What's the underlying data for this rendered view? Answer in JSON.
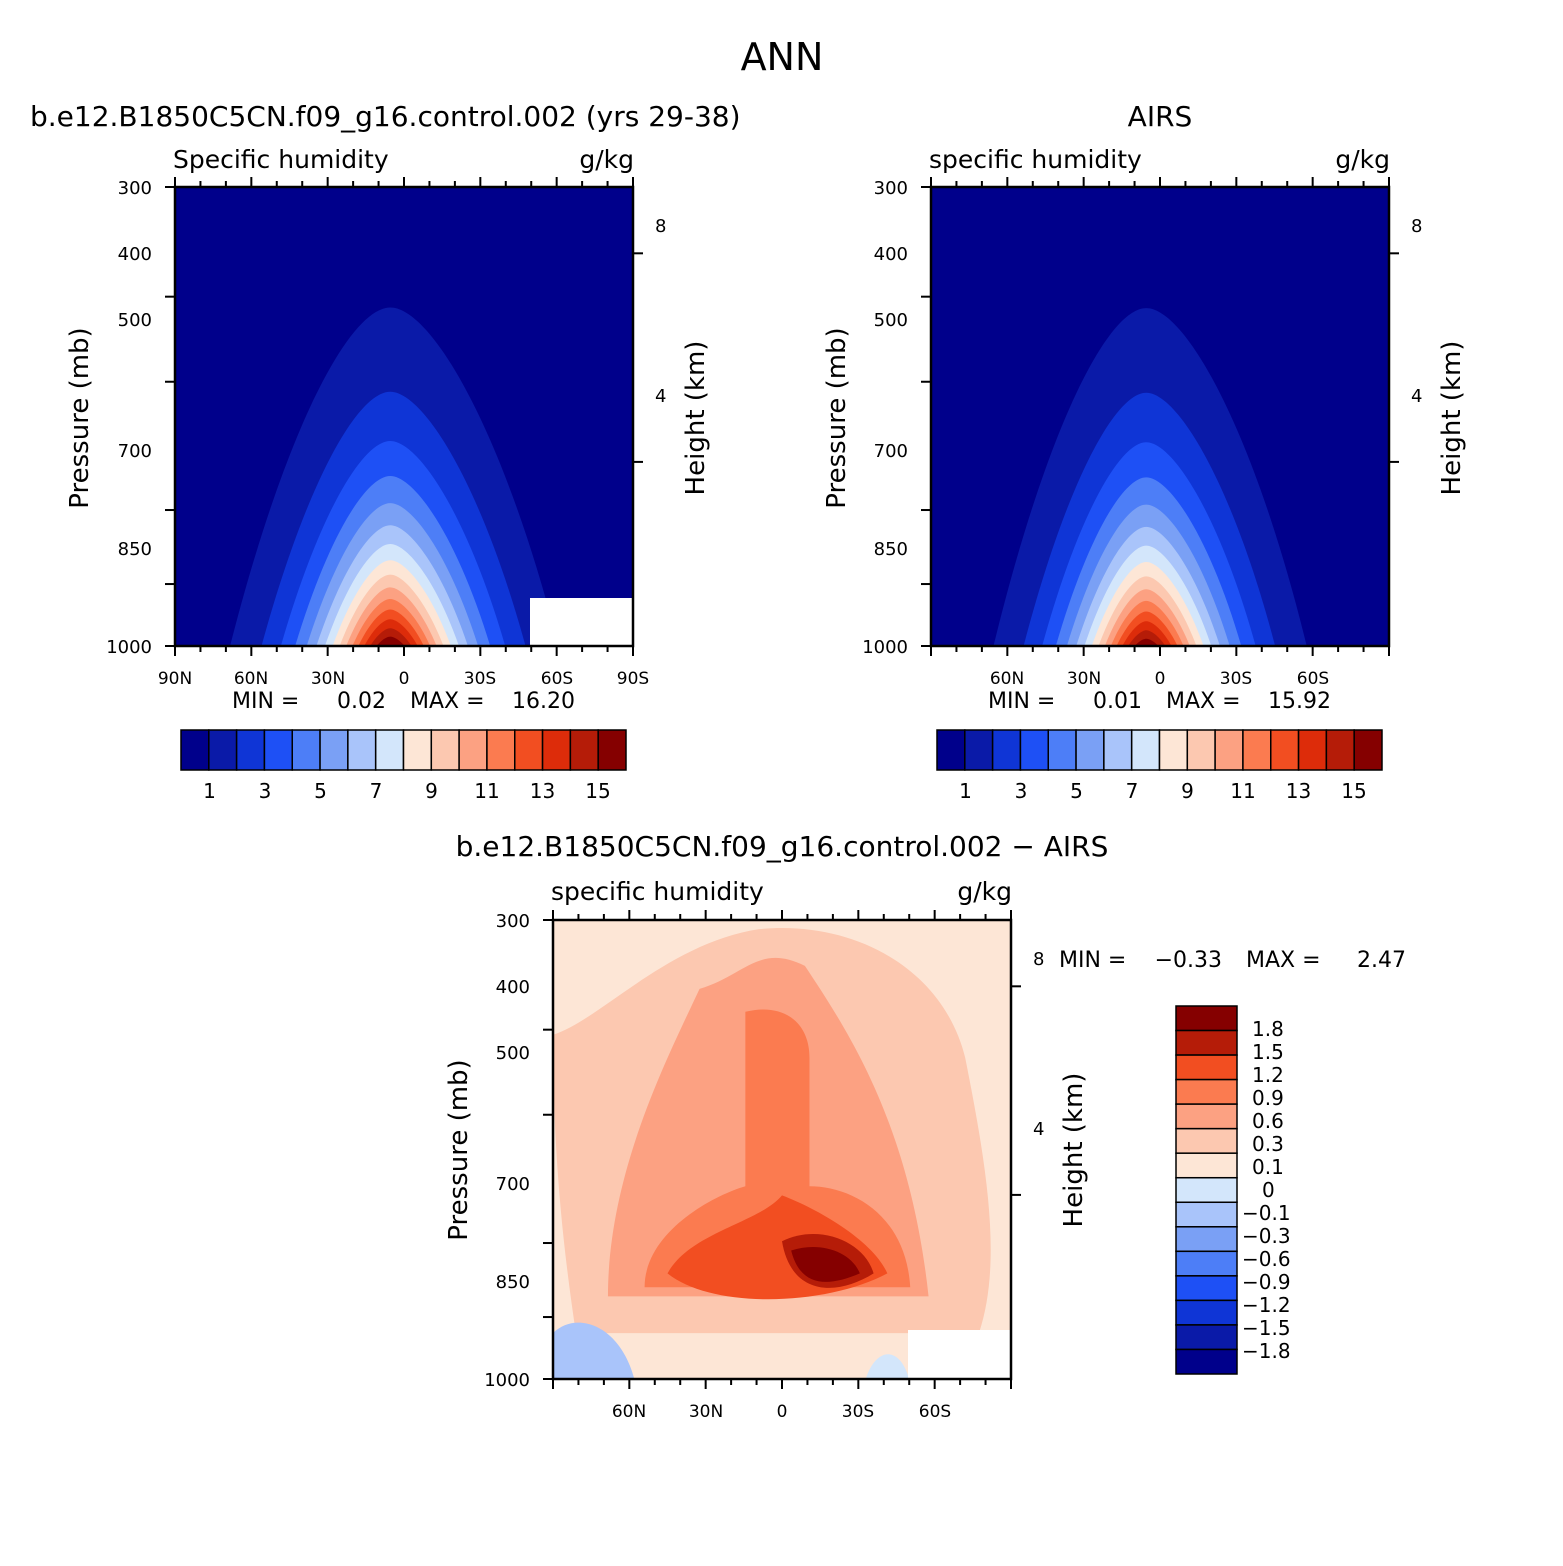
{
  "figure_title": "ANN",
  "colormap_abs": [
    "#00008b",
    "#0a1aa8",
    "#0f35d6",
    "#1e50f5",
    "#4d7ef7",
    "#7aa0f5",
    "#a9c4fa",
    "#d3e6fb",
    "#fde6d6",
    "#fcc8b0",
    "#fca182",
    "#fb7b50",
    "#f24e21",
    "#dd2c0a",
    "#b51c08",
    "#850000"
  ],
  "colormap_diff": [
    "#00008b",
    "#0a1aa8",
    "#0f35d6",
    "#1e50f5",
    "#4d7ef7",
    "#7aa0f5",
    "#a9c4fa",
    "#d3e6fb",
    "#fde6d6",
    "#fcc8b0",
    "#fca182",
    "#fb7b50",
    "#f24e21",
    "#b51c08",
    "#850000"
  ],
  "chart_data": [
    {
      "type": "heatmap",
      "id": "model",
      "case_title": "b.e12.B1850C5CN.f09_g16.control.002 (yrs 29-38)",
      "variable_label": "Specific humidity",
      "units": "g/kg",
      "ylabel": "Pressure (mb)",
      "y2label": "Height (km)",
      "y_ticks": [
        "300",
        "400",
        "500",
        "700",
        "850",
        "1000"
      ],
      "y2_ticks": [
        "8",
        "4"
      ],
      "x_ticks": [
        "90N",
        "60N",
        "30N",
        "0",
        "30S",
        "90S"
      ],
      "x_label_60s": "60S",
      "min_label": "MIN =",
      "min_value": "0.02",
      "max_label": "MAX =",
      "max_value": "16.20",
      "colorbar_labels": [
        "1",
        "3",
        "5",
        "7",
        "9",
        "11",
        "13",
        "15"
      ],
      "peak": 16.2
    },
    {
      "type": "heatmap",
      "id": "obs",
      "case_title": "AIRS",
      "variable_label": "specific humidity",
      "units": "g/kg",
      "ylabel": "Pressure (mb)",
      "y2label": "Height (km)",
      "y_ticks": [
        "300",
        "400",
        "500",
        "700",
        "850",
        "1000"
      ],
      "y2_ticks": [
        "8",
        "4"
      ],
      "x_ticks": [
        "60N",
        "30N",
        "0",
        "30S",
        "60S"
      ],
      "min_label": "MIN =",
      "min_value": "0.01",
      "max_label": "MAX =",
      "max_value": "15.92",
      "colorbar_labels": [
        "1",
        "3",
        "5",
        "7",
        "9",
        "11",
        "13",
        "15"
      ],
      "peak": 15.92
    },
    {
      "type": "heatmap",
      "id": "diff",
      "case_title": "b.e12.B1850C5CN.f09_g16.control.002 − AIRS",
      "variable_label": "specific humidity",
      "units": "g/kg",
      "ylabel": "Pressure (mb)",
      "y2label": "Height (km)",
      "y_ticks": [
        "300",
        "400",
        "500",
        "700",
        "850",
        "1000"
      ],
      "y2_ticks": [
        "8",
        "4"
      ],
      "x_ticks": [
        "60N",
        "30N",
        "0",
        "30S",
        "60S"
      ],
      "min_label": "MIN =",
      "min_value": "−0.33",
      "max_label": "MAX =",
      "max_value": "2.47",
      "colorbar_labels": [
        "1.8",
        "1.5",
        "1.2",
        "0.9",
        "0.6",
        "0.3",
        "0.1",
        "0",
        "−0.1",
        "−0.3",
        "−0.6",
        "−0.9",
        "−1.2",
        "−1.5",
        "−1.8"
      ]
    }
  ]
}
